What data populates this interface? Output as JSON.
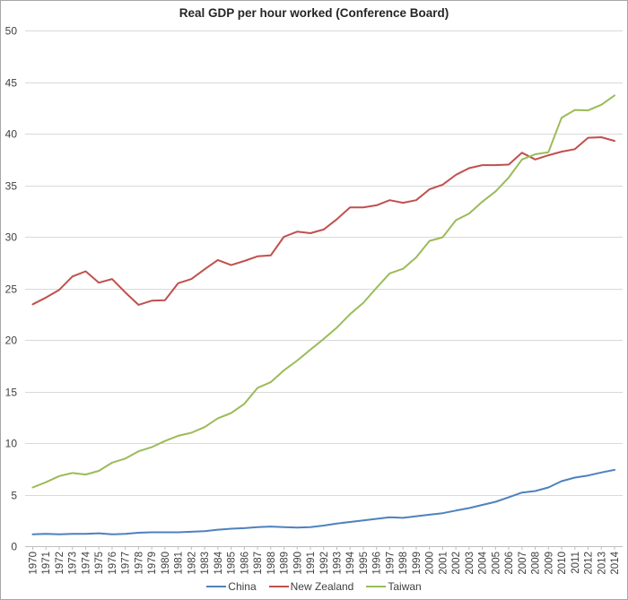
{
  "chart_data": {
    "type": "line",
    "title": "Real GDP per hour worked (Conference Board)",
    "xlabel": "",
    "ylabel": "",
    "ylim": [
      0,
      50
    ],
    "yticks": [
      0,
      5,
      10,
      15,
      20,
      25,
      30,
      35,
      40,
      45,
      50
    ],
    "grid": true,
    "legend_position": "bottom",
    "x": [
      "1970",
      "1971",
      "1972",
      "1973",
      "1974",
      "1975",
      "1976",
      "1977",
      "1978",
      "1979",
      "1980",
      "1981",
      "1982",
      "1983",
      "1984",
      "1985",
      "1986",
      "1987",
      "1988",
      "1989",
      "1990",
      "1991",
      "1992",
      "1993",
      "1994",
      "1995",
      "1996",
      "1997",
      "1998",
      "1999",
      "2000",
      "2001",
      "2002",
      "2003",
      "2004",
      "2005",
      "2006",
      "2007",
      "2008",
      "2009",
      "2010",
      "2011",
      "2012",
      "2013",
      "2014"
    ],
    "series": [
      {
        "name": "China",
        "color": "#4f81bd",
        "values": [
          1.15,
          1.2,
          1.15,
          1.2,
          1.2,
          1.25,
          1.15,
          1.2,
          1.3,
          1.35,
          1.35,
          1.35,
          1.4,
          1.45,
          1.6,
          1.7,
          1.75,
          1.85,
          1.9,
          1.85,
          1.8,
          1.85,
          2.0,
          2.2,
          2.35,
          2.5,
          2.65,
          2.8,
          2.75,
          2.9,
          3.05,
          3.2,
          3.45,
          3.7,
          4.0,
          4.3,
          4.75,
          5.2,
          5.35,
          5.7,
          6.3,
          6.65,
          6.85,
          7.15,
          7.4
        ]
      },
      {
        "name": "New Zealand",
        "color": "#c0504d",
        "values": [
          23.45,
          24.1,
          24.85,
          26.15,
          26.65,
          25.55,
          25.9,
          24.6,
          23.4,
          23.8,
          23.85,
          25.5,
          25.9,
          26.85,
          27.75,
          27.25,
          27.65,
          28.1,
          28.2,
          30.0,
          30.5,
          30.35,
          30.7,
          31.7,
          32.85,
          32.85,
          33.05,
          33.55,
          33.3,
          33.55,
          34.6,
          35.05,
          36.0,
          36.65,
          36.95,
          36.95,
          37.0,
          38.15,
          37.5,
          37.9,
          38.25,
          38.5,
          39.6,
          39.65,
          39.3
        ]
      },
      {
        "name": "Taiwan",
        "color": "#9bbb59",
        "values": [
          5.7,
          6.2,
          6.8,
          7.1,
          6.95,
          7.3,
          8.1,
          8.5,
          9.2,
          9.6,
          10.2,
          10.7,
          11.0,
          11.55,
          12.4,
          12.9,
          13.8,
          15.35,
          15.9,
          17.05,
          18.0,
          19.05,
          20.1,
          21.2,
          22.5,
          23.6,
          25.05,
          26.45,
          26.9,
          28.0,
          29.6,
          29.95,
          31.6,
          32.25,
          33.4,
          34.4,
          35.75,
          37.5,
          38.0,
          38.2,
          41.55,
          42.3,
          42.25,
          42.8,
          43.7
        ]
      }
    ]
  },
  "legend": {
    "items": [
      {
        "label": "China",
        "color": "#4f81bd"
      },
      {
        "label": "New Zealand",
        "color": "#c0504d"
      },
      {
        "label": "Taiwan",
        "color": "#9bbb59"
      }
    ]
  },
  "colors": {
    "grid": "#d9d9d9",
    "axis": "#bfbfbf",
    "text": "#404040",
    "title": "#262626"
  }
}
